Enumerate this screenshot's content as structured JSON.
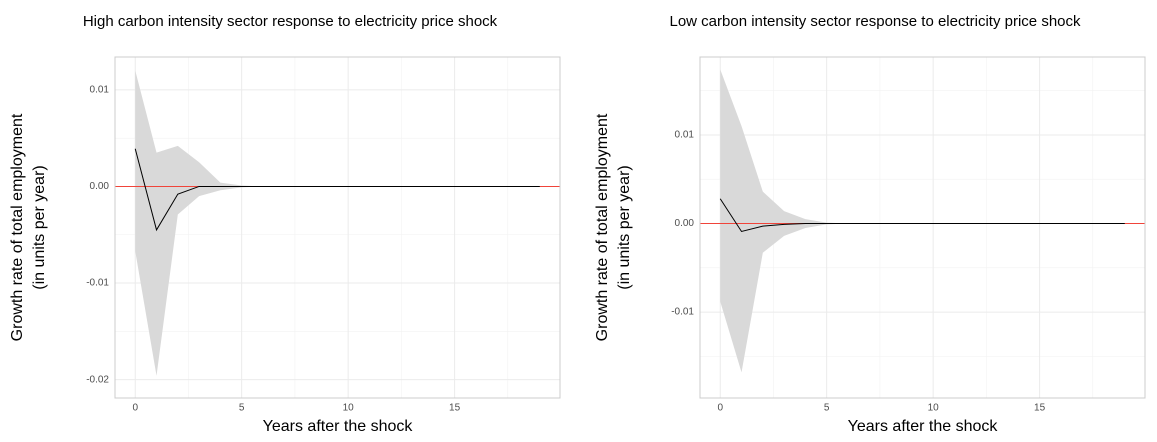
{
  "chart_data": [
    {
      "type": "line",
      "title": "High carbon intensity sector response to electricity price shock",
      "xlabel": "Years after the shock",
      "ylabel": [
        "Growth rate of total employment",
        "(in units per year)"
      ],
      "x": [
        0,
        1,
        2,
        3,
        4,
        5,
        6,
        7,
        8,
        9,
        10,
        11,
        12,
        13,
        14,
        15,
        16,
        17,
        18,
        19
      ],
      "values": [
        0.0039,
        -0.0045,
        -0.0008,
        0,
        0,
        0,
        0,
        0,
        0,
        0,
        0,
        0,
        0,
        0,
        0,
        0,
        0,
        0,
        0,
        0
      ],
      "upper": [
        0.012,
        0.0035,
        0.0042,
        0.0025,
        0.0004,
        0.0001,
        0,
        0,
        0,
        0,
        0,
        0,
        0,
        0,
        0,
        0,
        0,
        0,
        0,
        0
      ],
      "lower": [
        -0.0067,
        -0.0196,
        -0.0029,
        -0.001,
        -0.0004,
        -0.0001,
        0,
        0,
        0,
        0,
        0,
        0,
        0,
        0,
        0,
        0,
        0,
        0,
        0,
        0
      ],
      "color": "#000000",
      "band_color": "#d9d9d9",
      "reference_line": {
        "value": 0,
        "color": "#f0443a"
      },
      "xlim": [
        -0.95,
        19.95
      ],
      "ylim": [
        -0.0219,
        0.0134
      ],
      "xticks": [
        0,
        5,
        10,
        15
      ],
      "yticks": [
        0.01,
        {
          "value": 0,
          "label": "0.00"
        },
        -0.01,
        -0.02
      ],
      "grid": true
    },
    {
      "type": "line",
      "title": "Low carbon intensity sector response to electricity price shock",
      "xlabel": "Years after the shock",
      "ylabel": [
        "Growth rate of total employment",
        "(in units per year)"
      ],
      "x": [
        0,
        1,
        2,
        3,
        4,
        5,
        6,
        7,
        8,
        9,
        10,
        11,
        12,
        13,
        14,
        15,
        16,
        17,
        18,
        19
      ],
      "values": [
        0.0028,
        -0.0009,
        -0.0003,
        -0.0001,
        0,
        0,
        0,
        0,
        0,
        0,
        0,
        0,
        0,
        0,
        0,
        0,
        0,
        0,
        0,
        0
      ],
      "upper": [
        0.0174,
        0.011,
        0.0036,
        0.0014,
        0.0005,
        0.0001,
        0,
        0,
        0,
        0,
        0,
        0,
        0,
        0,
        0,
        0,
        0,
        0,
        0,
        0
      ],
      "lower": [
        -0.0088,
        -0.0168,
        -0.0033,
        -0.0014,
        -0.0005,
        -0.0001,
        0,
        0,
        0,
        0,
        0,
        0,
        0,
        0,
        0,
        0,
        0,
        0,
        0,
        0
      ],
      "color": "#000000",
      "band_color": "#d9d9d9",
      "reference_line": {
        "value": 0,
        "color": "#f0443a"
      },
      "xlim": [
        -0.95,
        19.95
      ],
      "ylim": [
        -0.0197,
        0.0188
      ],
      "xticks": [
        0,
        5,
        10,
        15
      ],
      "yticks": [
        0.01,
        {
          "value": 0,
          "label": "0.00"
        },
        -0.01
      ],
      "grid": true
    }
  ]
}
